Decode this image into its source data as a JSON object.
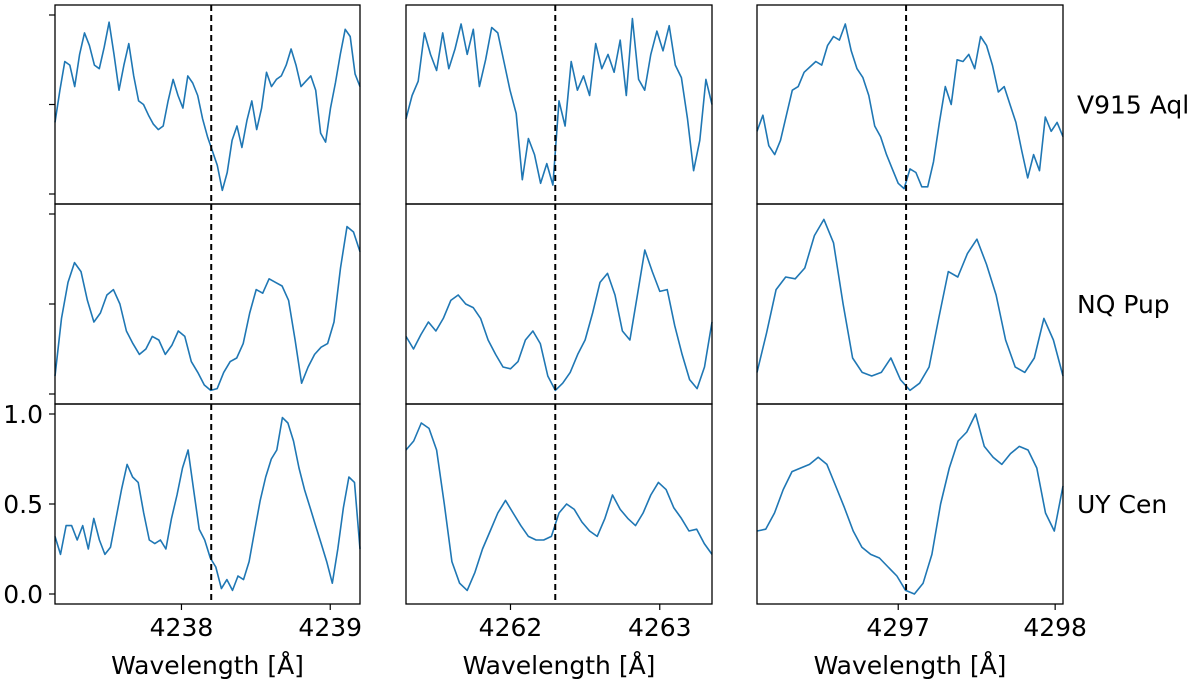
{
  "colors": {
    "line": "#1f77b4",
    "ref_line": "#000000",
    "frame": "#000000"
  },
  "chart_data": {
    "type": "line",
    "layout": "3x3 grid of panels, columns share x-range, rows are stars",
    "ylim": [
      0,
      1
    ],
    "yticks": [
      0.0,
      0.5,
      1.0
    ],
    "ytick_labels": [
      "0.0",
      "0.5",
      "1.0"
    ],
    "grid": false,
    "legend": "none",
    "columns": [
      {
        "xlabel": "Wavelength [Å]",
        "xlim": [
          4237.15,
          4239.2
        ],
        "ref_x": 4238.2,
        "xticks": [
          4238,
          4239
        ],
        "xtick_labels": [
          "4238",
          "4239"
        ]
      },
      {
        "xlabel": "Wavelength [Å]",
        "xlim": [
          4261.3,
          4263.35
        ],
        "ref_x": 4262.3,
        "xticks": [
          4262,
          4263
        ],
        "xtick_labels": [
          "4262",
          "4263"
        ]
      },
      {
        "xlabel": "Wavelength [Å]",
        "xlim": [
          4296.1,
          4298.05
        ],
        "ref_x": 4297.05,
        "xticks": [
          4297,
          4298
        ],
        "xtick_labels": [
          "4297",
          "4298"
        ]
      }
    ],
    "rows": [
      {
        "label": "V915 Aql",
        "panels": [
          {
            "x_start": 4237.15,
            "x_end": 4239.2,
            "y": [
              0.4,
              0.58,
              0.74,
              0.72,
              0.6,
              0.78,
              0.9,
              0.83,
              0.72,
              0.7,
              0.82,
              0.96,
              0.78,
              0.58,
              0.72,
              0.84,
              0.66,
              0.52,
              0.5,
              0.44,
              0.39,
              0.36,
              0.38,
              0.52,
              0.64,
              0.55,
              0.48,
              0.66,
              0.62,
              0.55,
              0.42,
              0.32,
              0.24,
              0.16,
              0.02,
              0.12,
              0.3,
              0.38,
              0.26,
              0.41,
              0.52,
              0.36,
              0.48,
              0.68,
              0.6,
              0.64,
              0.66,
              0.72,
              0.81,
              0.72,
              0.6,
              0.63,
              0.66,
              0.58,
              0.34,
              0.29,
              0.48,
              0.62,
              0.78,
              0.92,
              0.88,
              0.67,
              0.6
            ]
          },
          {
            "x_start": 4261.3,
            "x_end": 4263.35,
            "y": [
              0.42,
              0.55,
              0.63,
              0.9,
              0.78,
              0.69,
              0.9,
              0.7,
              0.81,
              0.95,
              0.78,
              0.92,
              0.6,
              0.75,
              0.93,
              0.9,
              0.74,
              0.58,
              0.45,
              0.08,
              0.31,
              0.22,
              0.06,
              0.17,
              0.05,
              0.52,
              0.38,
              0.74,
              0.58,
              0.66,
              0.55,
              0.84,
              0.7,
              0.78,
              0.68,
              0.86,
              0.55,
              0.98,
              0.64,
              0.58,
              0.78,
              0.91,
              0.8,
              0.94,
              0.72,
              0.65,
              0.42,
              0.13,
              0.3,
              0.64,
              0.5
            ]
          },
          {
            "x_start": 4296.1,
            "x_end": 4298.05,
            "y": [
              0.35,
              0.44,
              0.27,
              0.22,
              0.3,
              0.44,
              0.58,
              0.6,
              0.68,
              0.71,
              0.74,
              0.72,
              0.83,
              0.88,
              0.86,
              0.95,
              0.8,
              0.7,
              0.65,
              0.55,
              0.38,
              0.32,
              0.22,
              0.14,
              0.06,
              0.03,
              0.14,
              0.12,
              0.04,
              0.04,
              0.18,
              0.4,
              0.6,
              0.5,
              0.75,
              0.74,
              0.78,
              0.7,
              0.88,
              0.83,
              0.72,
              0.57,
              0.6,
              0.5,
              0.4,
              0.24,
              0.09,
              0.22,
              0.13,
              0.43,
              0.35,
              0.4,
              0.32
            ]
          }
        ]
      },
      {
        "label": "NQ Pup",
        "panels": [
          {
            "x_start": 4237.15,
            "x_end": 4239.2,
            "y": [
              0.1,
              0.42,
              0.62,
              0.73,
              0.68,
              0.52,
              0.4,
              0.45,
              0.55,
              0.58,
              0.5,
              0.35,
              0.28,
              0.22,
              0.25,
              0.32,
              0.3,
              0.22,
              0.27,
              0.35,
              0.32,
              0.18,
              0.12,
              0.05,
              0.02,
              0.03,
              0.12,
              0.18,
              0.2,
              0.28,
              0.45,
              0.58,
              0.56,
              0.64,
              0.62,
              0.6,
              0.52,
              0.3,
              0.06,
              0.15,
              0.22,
              0.26,
              0.28,
              0.4,
              0.7,
              0.93,
              0.9,
              0.79
            ]
          },
          {
            "x_start": 4261.3,
            "x_end": 4263.35,
            "y": [
              0.32,
              0.25,
              0.33,
              0.4,
              0.35,
              0.42,
              0.52,
              0.55,
              0.5,
              0.48,
              0.42,
              0.3,
              0.22,
              0.15,
              0.14,
              0.18,
              0.3,
              0.35,
              0.28,
              0.1,
              0.02,
              0.06,
              0.12,
              0.22,
              0.3,
              0.45,
              0.62,
              0.67,
              0.55,
              0.35,
              0.3,
              0.55,
              0.8,
              0.68,
              0.57,
              0.58,
              0.38,
              0.22,
              0.08,
              0.03,
              0.15,
              0.4
            ]
          },
          {
            "x_start": 4296.1,
            "x_end": 4298.05,
            "y": [
              0.12,
              0.34,
              0.58,
              0.65,
              0.64,
              0.7,
              0.88,
              0.97,
              0.84,
              0.5,
              0.2,
              0.12,
              0.1,
              0.12,
              0.2,
              0.08,
              0.02,
              0.06,
              0.15,
              0.42,
              0.68,
              0.65,
              0.78,
              0.86,
              0.72,
              0.55,
              0.3,
              0.15,
              0.12,
              0.2,
              0.42,
              0.3,
              0.1
            ]
          }
        ]
      },
      {
        "label": "UY Cen",
        "panels": [
          {
            "x_start": 4237.15,
            "x_end": 4239.2,
            "y": [
              0.32,
              0.22,
              0.38,
              0.38,
              0.3,
              0.38,
              0.25,
              0.42,
              0.3,
              0.22,
              0.26,
              0.42,
              0.58,
              0.72,
              0.65,
              0.62,
              0.45,
              0.3,
              0.28,
              0.3,
              0.25,
              0.42,
              0.55,
              0.7,
              0.8,
              0.58,
              0.36,
              0.3,
              0.2,
              0.15,
              0.03,
              0.08,
              0.02,
              0.1,
              0.08,
              0.18,
              0.35,
              0.52,
              0.65,
              0.75,
              0.8,
              0.98,
              0.95,
              0.85,
              0.7,
              0.58,
              0.48,
              0.38,
              0.28,
              0.18,
              0.06,
              0.25,
              0.48,
              0.65,
              0.62,
              0.25
            ]
          },
          {
            "x_start": 4261.3,
            "x_end": 4263.35,
            "y": [
              0.8,
              0.85,
              0.95,
              0.92,
              0.8,
              0.5,
              0.18,
              0.06,
              0.02,
              0.12,
              0.25,
              0.35,
              0.45,
              0.52,
              0.45,
              0.38,
              0.32,
              0.3,
              0.3,
              0.32,
              0.45,
              0.5,
              0.47,
              0.4,
              0.35,
              0.32,
              0.42,
              0.55,
              0.47,
              0.42,
              0.38,
              0.45,
              0.55,
              0.62,
              0.58,
              0.48,
              0.42,
              0.35,
              0.36,
              0.28,
              0.22
            ]
          },
          {
            "x_start": 4296.1,
            "x_end": 4298.05,
            "y": [
              0.35,
              0.36,
              0.45,
              0.58,
              0.68,
              0.7,
              0.72,
              0.76,
              0.72,
              0.6,
              0.48,
              0.35,
              0.26,
              0.22,
              0.2,
              0.15,
              0.1,
              0.02,
              0.0,
              0.06,
              0.22,
              0.5,
              0.7,
              0.85,
              0.9,
              1.0,
              0.82,
              0.76,
              0.72,
              0.78,
              0.82,
              0.8,
              0.7,
              0.45,
              0.35,
              0.6
            ]
          }
        ]
      }
    ]
  }
}
